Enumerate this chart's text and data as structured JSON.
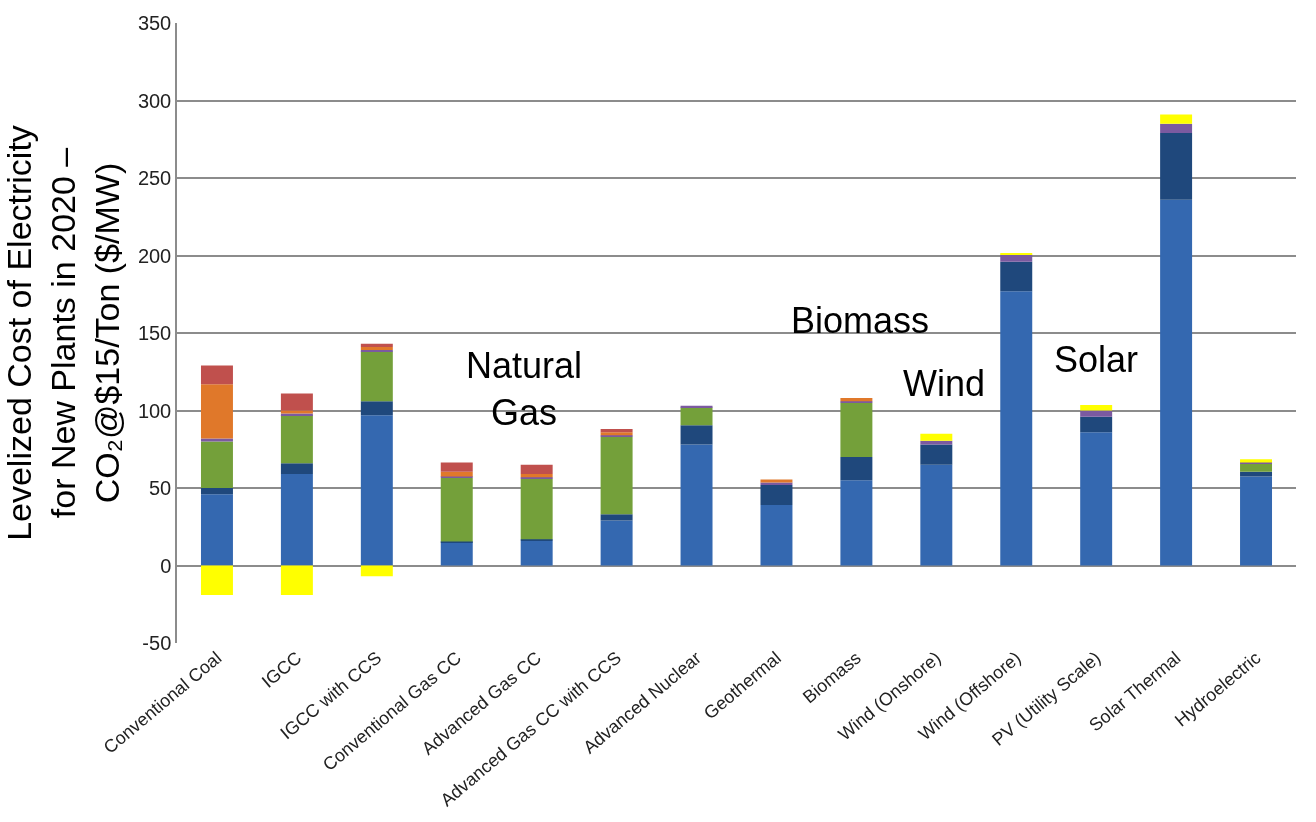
{
  "chart_data": {
    "type": "bar",
    "stacked": true,
    "ylabel": "Levelized Cost of Electricity\nfor New Plants in 2020 –\nCO₂@$15/Ton ($/MW)",
    "categories": [
      "Conventional Coal",
      "IGCC",
      "IGCC with CCS",
      "Conventional Gas CC",
      "Advanced Gas CC",
      "Advanced Gas CC with CCS",
      "Advanced Nuclear",
      "Geothermal",
      "Biomass",
      "Wind (Onshore)",
      "Wind (Offshore)",
      "PV (Utility Scale)",
      "Solar Thermal",
      "Hydroelectric"
    ],
    "series": [
      {
        "color": "#3468b0",
        "values": [
          46,
          59,
          97,
          15,
          16,
          29,
          78,
          39,
          55,
          65,
          177,
          86,
          236,
          57.5
        ]
      },
      {
        "color": "#1f487c",
        "values": [
          4,
          7,
          9,
          0.5,
          1,
          4,
          12.5,
          13,
          15,
          13,
          19,
          10,
          43,
          3
        ]
      },
      {
        "color": "#74a03a",
        "values": [
          30,
          31,
          32,
          41,
          39,
          50,
          11.5,
          0,
          35,
          0,
          0,
          0,
          0,
          5
        ]
      },
      {
        "color": "#7b5aa0",
        "values": [
          2,
          1,
          1,
          1,
          1,
          1,
          1,
          1.5,
          1,
          2.5,
          4.5,
          4,
          6,
          1
        ]
      },
      {
        "color": "#e0782a",
        "values": [
          35,
          2,
          2,
          3,
          2,
          2,
          0,
          2,
          2,
          0,
          0,
          0,
          0,
          0
        ]
      },
      {
        "color": "#c0504d",
        "values": [
          12,
          11,
          2,
          6,
          6,
          2,
          0,
          0,
          0,
          0,
          0,
          0,
          0,
          0
        ]
      },
      {
        "color": "#ffff00",
        "values": [
          -19,
          -19,
          -7,
          0,
          0,
          0,
          0,
          0,
          0,
          4.5,
          0.5,
          3.5,
          6,
          2
        ]
      }
    ],
    "ylim": [
      -50,
      350
    ],
    "yticks": [
      -50,
      0,
      50,
      100,
      150,
      200,
      250,
      300,
      350
    ],
    "grid": "y",
    "legend": false,
    "annotations": [
      "Natural\nGas",
      "Biomass",
      "Wind",
      "Solar"
    ]
  }
}
